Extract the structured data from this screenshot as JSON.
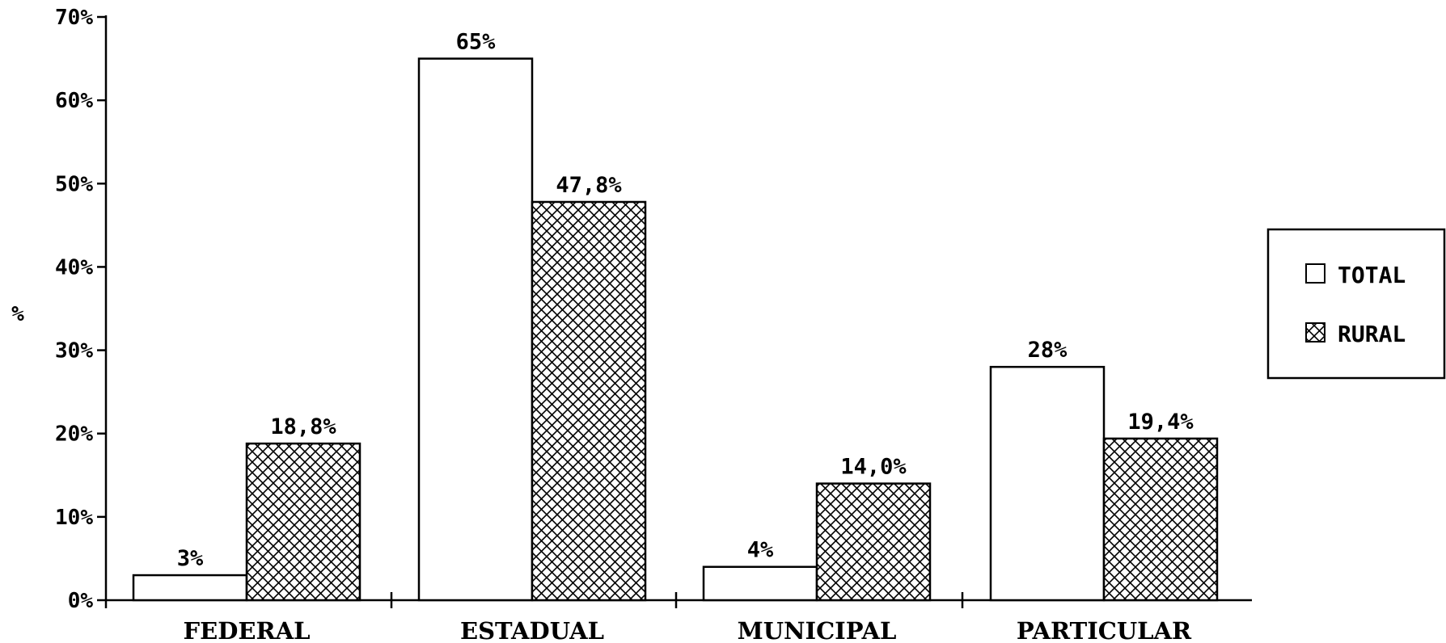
{
  "chart_data": {
    "type": "bar",
    "categories": [
      "FEDERAL",
      "ESTADUAL",
      "MUNICIPAL",
      "PARTICULAR"
    ],
    "series": [
      {
        "name": "TOTAL",
        "values": [
          3,
          65,
          4,
          28
        ],
        "labels": [
          "3%",
          "65%",
          "4%",
          "28%"
        ]
      },
      {
        "name": "RURAL",
        "values": [
          18.8,
          47.8,
          14.0,
          19.4
        ],
        "labels": [
          "18,8%",
          "47,8%",
          "14,0%",
          "19,4%"
        ]
      }
    ],
    "ylabel": "%",
    "ylim": [
      0,
      70
    ],
    "yticks": [
      0,
      10,
      20,
      30,
      40,
      50,
      60,
      70
    ],
    "ytick_labels": [
      "0%",
      "10%",
      "20%",
      "30%",
      "40%",
      "50%",
      "60%",
      "70%"
    ],
    "grid": false,
    "legend_position": "right",
    "series_styles": {
      "TOTAL": "plain",
      "RURAL": "crosshatch"
    }
  }
}
